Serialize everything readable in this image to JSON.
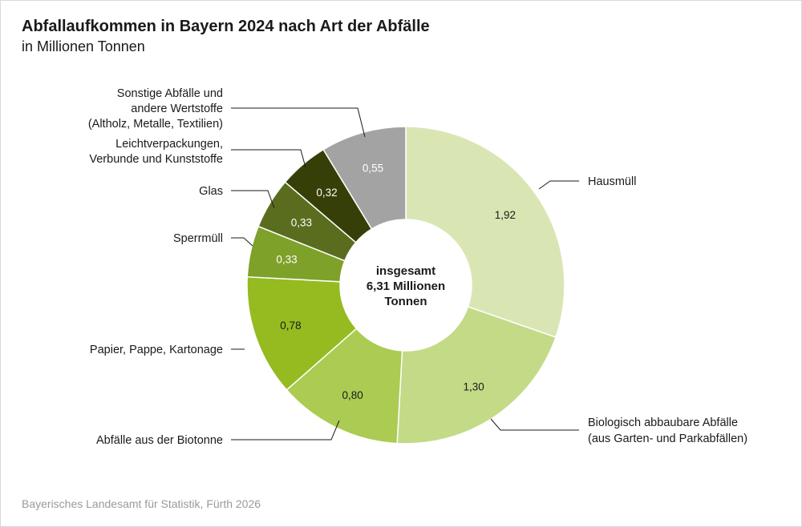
{
  "chart_data": {
    "type": "pie",
    "title": "Abfallaufkommen in Bayern 2024 nach Art der Abfälle",
    "subtitle": "in Millionen Tonnen",
    "center_label": [
      "insgesamt",
      "6,31 Millionen",
      "Tonnen"
    ],
    "source": "Bayerisches Landesamt für Statistik, Fürth 2026",
    "slices": [
      {
        "label": [
          "Hausmüll"
        ],
        "value": 1.92,
        "display": "1,92",
        "color": "#d9e6b4",
        "text_color": "#1a1a1a"
      },
      {
        "label": [
          "Biologisch abbaubare Abfälle",
          "(aus Garten- und Parkabfällen)"
        ],
        "value": 1.3,
        "display": "1,30",
        "color": "#c3da87",
        "text_color": "#1a1a1a"
      },
      {
        "label": [
          "Abfälle aus der Biotonne"
        ],
        "value": 0.8,
        "display": "0,80",
        "color": "#abcb52",
        "text_color": "#1a1a1a"
      },
      {
        "label": [
          "Papier, Pappe, Kartonage"
        ],
        "value": 0.78,
        "display": "0,78",
        "color": "#95bb20",
        "text_color": "#1a1a1a"
      },
      {
        "label": [
          "Sperrmüll"
        ],
        "value": 0.33,
        "display": "0,33",
        "color": "#7ea12a",
        "text_color": "#ffffff"
      },
      {
        "label": [
          "Glas"
        ],
        "value": 0.33,
        "display": "0,33",
        "color": "#5a6d1e",
        "text_color": "#ffffff"
      },
      {
        "label": [
          "Leichtverpackungen,",
          "Verbunde und Kunststoffe"
        ],
        "value": 0.32,
        "display": "0,32",
        "color": "#373f08",
        "text_color": "#ffffff"
      },
      {
        "label": [
          "Sonstige Abfälle und",
          "andere Wertstoffe",
          "(Altholz, Metalle, Textilien)"
        ],
        "value": 0.55,
        "display": "0,55",
        "color": "#a3a3a3",
        "text_color": "#ffffff"
      }
    ]
  }
}
